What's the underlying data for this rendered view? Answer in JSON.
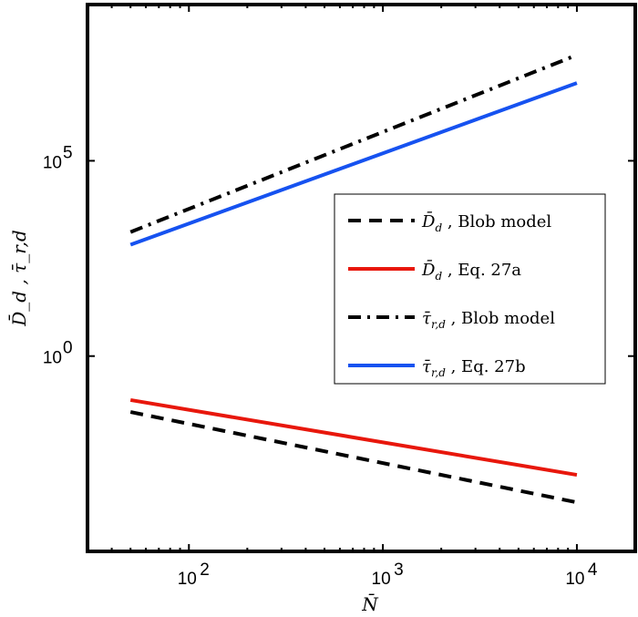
{
  "chart_data": {
    "type": "line",
    "xlabel": "N̄",
    "ylabel": "D̄_d , τ̄_r,d",
    "xscale": "log",
    "yscale": "log",
    "xlim": [
      30,
      20000
    ],
    "ylim": [
      1e-05,
      1000000000.0
    ],
    "xticks": [
      {
        "value": 100,
        "label": "10",
        "exp": "2"
      },
      {
        "value": 1000,
        "label": "10",
        "exp": "3"
      },
      {
        "value": 10000,
        "label": "10",
        "exp": "4"
      }
    ],
    "yticks": [
      {
        "value": 1,
        "label": "10",
        "exp": "0"
      },
      {
        "value": 100000,
        "label": "10",
        "exp": "5"
      }
    ],
    "grid": false,
    "legend_position": "right-center",
    "series": [
      {
        "name": "D̄_d , Blob model",
        "sym": "D̄",
        "sub": "d",
        "text": ", Blob model",
        "color": "#000000",
        "style": "dashed",
        "x": [
          50,
          10000
        ],
        "y": [
          0.037,
          0.00018
        ]
      },
      {
        "name": "D̄_d , Eq. 27a",
        "sym": "D̄",
        "sub": "d",
        "text": ", Eq. 27a",
        "color": "#e8170c",
        "style": "solid",
        "x": [
          50,
          10000
        ],
        "y": [
          0.075,
          0.00091
        ]
      },
      {
        "name": "τ̄_r,d , Blob model",
        "sym": "τ̄",
        "sub": "r,d",
        "text": ", Blob model",
        "color": "#000000",
        "style": "dashdot",
        "x": [
          50,
          10000
        ],
        "y": [
          1500,
          51000000
        ]
      },
      {
        "name": "τ̄_r,d , Eq. 27b",
        "sym": "τ̄",
        "sub": "r,d",
        "text": ", Eq. 27b",
        "color": "#1652f0",
        "style": "solid",
        "x": [
          50,
          10000
        ],
        "y": [
          710,
          9800000
        ]
      }
    ]
  }
}
